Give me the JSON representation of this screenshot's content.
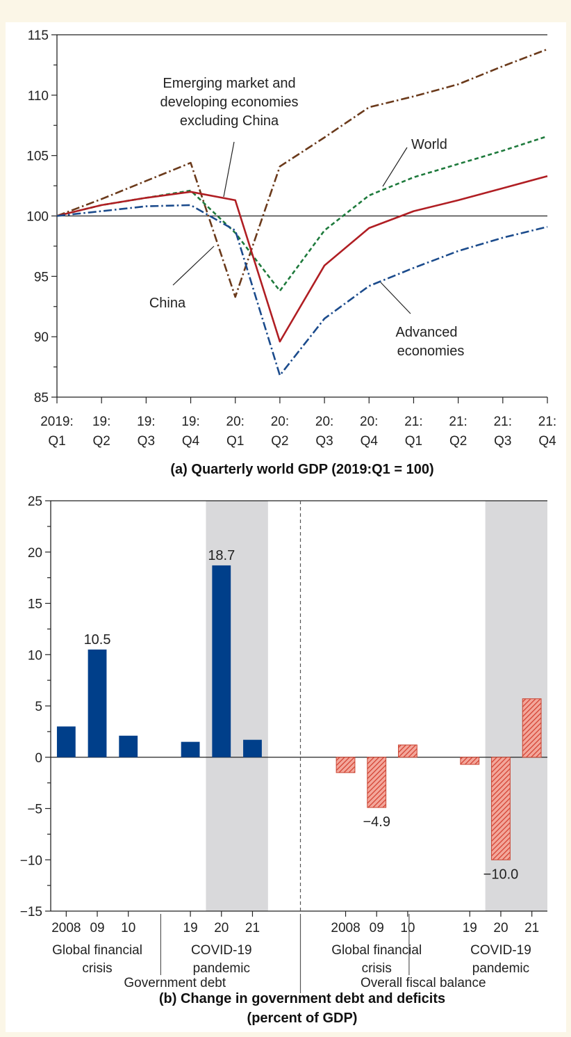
{
  "colors": {
    "background": "#fbf6e7",
    "frame": "#c8453b",
    "emde": "#6b3a1b",
    "world": "#1e7a3c",
    "emde_ex_china": "#b01e23",
    "advanced": "#1b4b8c",
    "china": "#6b3a1b",
    "debt_bar": "#003f8a",
    "balance_bar": "#e06050",
    "shade": "#d9d9db"
  },
  "chart_data": [
    {
      "type": "line",
      "caption": "(a) Quarterly world GDP (2019:Q1 = 100)",
      "x_ticks": [
        {
          "top": "2019:",
          "bottom": "Q1"
        },
        {
          "top": "19:",
          "bottom": "Q2"
        },
        {
          "top": "19:",
          "bottom": "Q3"
        },
        {
          "top": "19:",
          "bottom": "Q4"
        },
        {
          "top": "20:",
          "bottom": "Q1"
        },
        {
          "top": "20:",
          "bottom": "Q2"
        },
        {
          "top": "20:",
          "bottom": "Q3"
        },
        {
          "top": "20:",
          "bottom": "Q4"
        },
        {
          "top": "21:",
          "bottom": "Q1"
        },
        {
          "top": "21:",
          "bottom": "Q2"
        },
        {
          "top": "21:",
          "bottom": "Q3"
        },
        {
          "top": "21:",
          "bottom": "Q4"
        }
      ],
      "ylim": [
        85,
        115
      ],
      "y_ticks": [
        "85",
        "90",
        "95",
        "100",
        "105",
        "110",
        "115"
      ],
      "reference_line": 100,
      "series": [
        {
          "key": "china",
          "values": [
            100,
            101.4,
            102.9,
            104.4,
            93.3,
            104.1,
            106.5,
            109.0,
            109.9,
            110.9,
            112.4,
            113.8
          ]
        },
        {
          "key": "world",
          "values": [
            100,
            100.9,
            101.5,
            102.1,
            98.6,
            93.8,
            98.8,
            101.7,
            103.2,
            104.3,
            105.4,
            106.6
          ]
        },
        {
          "key": "emde_ex_china",
          "values": [
            100,
            100.9,
            101.5,
            102.0,
            101.3,
            89.6,
            95.9,
            99.0,
            100.4,
            101.3,
            102.3,
            103.3
          ]
        },
        {
          "key": "advanced",
          "values": [
            100,
            100.4,
            100.8,
            100.9,
            98.8,
            86.8,
            91.5,
            94.2,
            95.7,
            97.1,
            98.2,
            99.1
          ]
        }
      ],
      "annotations": {
        "emde_ex_china": [
          "Emerging market and",
          "developing economies",
          "excluding China"
        ],
        "world": [
          "World"
        ],
        "china": [
          "China"
        ],
        "advanced": [
          "Advanced",
          "economies"
        ]
      }
    },
    {
      "type": "bar",
      "caption_lines": [
        "(b) Change in government debt and deficits",
        "(percent of GDP)"
      ],
      "ylim": [
        -15,
        25
      ],
      "y_ticks": [
        "25",
        "20",
        "15",
        "10",
        "5",
        "0",
        "−5",
        "−10",
        "−15"
      ],
      "panels": [
        {
          "name": "Government debt",
          "groups": [
            {
              "name_lines": [
                "Global financial",
                "crisis"
              ],
              "categories": [
                "2008",
                "09",
                "10"
              ],
              "values": [
                3.0,
                10.5,
                2.1
              ],
              "labels": [
                "",
                "10.5",
                ""
              ],
              "shaded": false
            },
            {
              "name_lines": [
                "COVID-19",
                "pandemic"
              ],
              "categories": [
                "19",
                "20",
                "21"
              ],
              "values": [
                1.5,
                18.7,
                1.7
              ],
              "labels": [
                "",
                "18.7",
                ""
              ],
              "shaded": true
            }
          ]
        },
        {
          "name": "Overall fiscal balance",
          "groups": [
            {
              "name_lines": [
                "Global financial",
                "crisis"
              ],
              "categories": [
                "2008",
                "09",
                "10"
              ],
              "values": [
                -1.5,
                -4.9,
                1.2
              ],
              "labels": [
                "",
                "−4.9",
                ""
              ],
              "shaded": false
            },
            {
              "name_lines": [
                "COVID-19",
                "pandemic"
              ],
              "categories": [
                "19",
                "20",
                "21"
              ],
              "values": [
                -0.7,
                -10.0,
                5.7
              ],
              "labels": [
                "",
                "−10.0",
                ""
              ],
              "shaded": true
            }
          ]
        }
      ]
    }
  ]
}
